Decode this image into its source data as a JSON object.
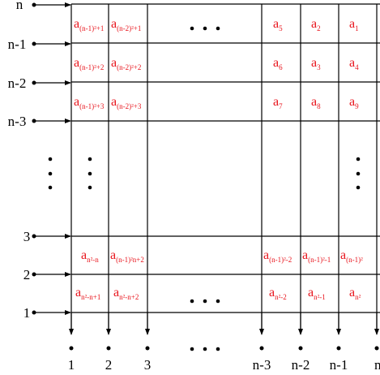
{
  "row_labels": [
    "n",
    "n-1",
    "n-2",
    "n-3",
    "3",
    "2",
    "1"
  ],
  "column_labels": [
    "1",
    "2",
    "3",
    "n-3",
    "n-2",
    "n-1",
    "n"
  ],
  "cells": {
    "top": [
      [
        "(n-1)²+1",
        "(n-2)²+1",
        "5",
        "2",
        "1"
      ],
      [
        "(n-1)²+2",
        "(n-2)²+2",
        "6",
        "3",
        "4"
      ],
      [
        "(n-1)²+3",
        "(n-2)²+3",
        "7",
        "8",
        "9"
      ]
    ],
    "bottom": [
      [
        "n²-n",
        "(n-1)²n+2",
        "(n-1)²-2",
        "(n-1)²-1",
        "(n-1)²"
      ],
      [
        "n²-n+1",
        "n²-n+2",
        "n²-2",
        "n²-1",
        "n²"
      ]
    ]
  },
  "colors": {
    "cell_text": "#e8141c",
    "lines": "#000000"
  }
}
